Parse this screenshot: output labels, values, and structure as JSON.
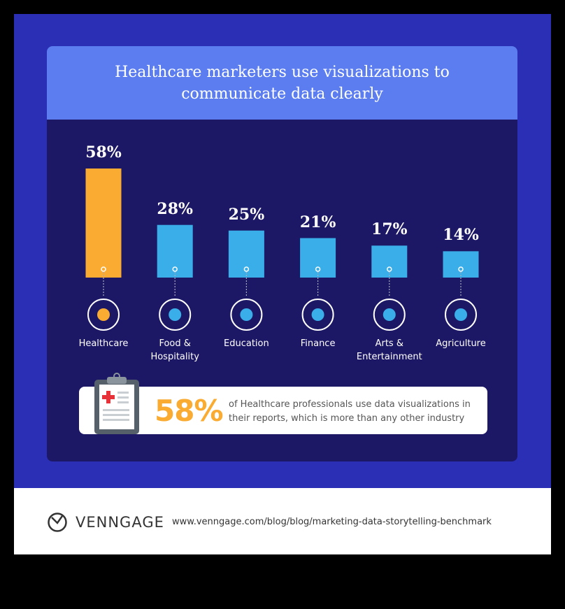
{
  "colors": {
    "frame": "#2b2fb5",
    "panel": "#1d1865",
    "header": "#5b7df0",
    "highlight": "#f9ab32",
    "bar": "#3aaee8"
  },
  "chart_data": {
    "type": "bar",
    "title": "Healthcare marketers use visualizations to communicate data clearly",
    "categories": [
      "Healthcare",
      "Food & Hospitality",
      "Education",
      "Finance",
      "Arts & Entertainment",
      "Agriculture"
    ],
    "values": [
      58,
      28,
      25,
      21,
      17,
      14
    ],
    "value_labels": [
      "58%",
      "28%",
      "25%",
      "21%",
      "17%",
      "14%"
    ],
    "icons": [
      "medical-bag-icon",
      "waiter-icon",
      "book-reader-icon",
      "money-bag-icon",
      "theater-masks-icon",
      "sprout-icon"
    ],
    "highlight": "Healthcare",
    "ylim": [
      0,
      58
    ],
    "grid": false
  },
  "label_lines": [
    [
      "Healthcare"
    ],
    [
      "Food &",
      "Hospitality"
    ],
    [
      "Education"
    ],
    [
      "Finance"
    ],
    [
      "Arts &",
      "Entertainment"
    ],
    [
      "Agriculture"
    ]
  ],
  "callout": {
    "value": "58%",
    "text": "of Healthcare professionals use data visualizations in their reports, which is more than any other industry"
  },
  "footer": {
    "brand": "VENNGAGE",
    "url": "www.venngage.com/blog/blog/marketing-data-storytelling-benchmark"
  }
}
